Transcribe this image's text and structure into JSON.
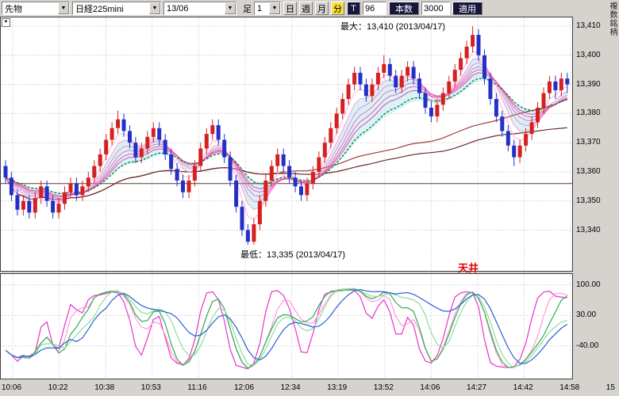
{
  "toolbar": {
    "instrument": "先物",
    "symbol": "日経225mini",
    "contract_month": "13/06",
    "bar_label": "足",
    "interval_value": "1",
    "period_buttons": [
      {
        "label": "日",
        "selected": false
      },
      {
        "label": "週",
        "selected": false
      },
      {
        "label": "月",
        "selected": false
      },
      {
        "label": "分",
        "selected": true
      }
    ],
    "tick_label": "T",
    "bars_count_value": "96",
    "bars_count_label": "本数",
    "range_value": "3000",
    "apply_label": "適用"
  },
  "side": {
    "vertical_tab": "複数銘柄"
  },
  "icons": {
    "dropdown": "▼",
    "corner": "▼"
  },
  "annotations": {
    "max_label": "最大：13,410 (2013/04/17)",
    "min_label": "最低：13,335 (2013/04/17)",
    "ceiling_label": "天井",
    "ceiling_color": "#e80000"
  },
  "price_axis": {
    "labels": [
      "13,410",
      "13,400",
      "13,390",
      "13,380",
      "13,370",
      "13,360",
      "13,350",
      "13,340"
    ],
    "values": [
      13410,
      13400,
      13390,
      13380,
      13370,
      13360,
      13350,
      13340
    ]
  },
  "osc_axis": {
    "labels": [
      "100.00",
      "30.00",
      "-40.00"
    ],
    "values": [
      100,
      30,
      -40
    ]
  },
  "time_axis": {
    "labels": [
      "10:06",
      "10:22",
      "10:38",
      "10:53",
      "11:16",
      "12:06",
      "12:34",
      "13:19",
      "13:52",
      "14:06",
      "14:27",
      "14:42",
      "14:58",
      "15"
    ]
  },
  "colors": {
    "candle_up": "#d42020",
    "candle_down": "#2330c8",
    "band_fill": "#c3edf2",
    "green_ma": "#0a7a2a",
    "flat_line": "#5a3a3a",
    "grid": "#c3c3c3",
    "selected_period_bg": "#f6df3a",
    "dark_button_bg": "#17173d"
  },
  "chart_data": [
    {
      "type": "candlestick",
      "ylim": [
        13326,
        13413
      ],
      "y_gridlines": [
        13340,
        13350,
        13360,
        13370,
        13380,
        13390,
        13400,
        13410
      ],
      "x_ticks": [
        "10:06",
        "10:22",
        "10:38",
        "10:53",
        "11:16",
        "12:06",
        "12:34",
        "13:19",
        "13:52",
        "14:06",
        "14:27",
        "14:42",
        "14:58",
        "15"
      ],
      "max_point": {
        "value": 13410,
        "date": "2013/04/17"
      },
      "min_point": {
        "value": 13335,
        "date": "2013/04/17"
      },
      "ohlc": [
        [
          13362,
          13364,
          13356,
          13358
        ],
        [
          13358,
          13360,
          13350,
          13352
        ],
        [
          13352,
          13354,
          13345,
          13347
        ],
        [
          13347,
          13352,
          13345,
          13350
        ],
        [
          13350,
          13352,
          13344,
          13346
        ],
        [
          13346,
          13353,
          13344,
          13351
        ],
        [
          13351,
          13357,
          13349,
          13355
        ],
        [
          13355,
          13357,
          13348,
          13350
        ],
        [
          13350,
          13352,
          13344,
          13346
        ],
        [
          13346,
          13351,
          13344,
          13349
        ],
        [
          13349,
          13355,
          13347,
          13353
        ],
        [
          13353,
          13358,
          13351,
          13356
        ],
        [
          13356,
          13358,
          13350,
          13352
        ],
        [
          13352,
          13357,
          13350,
          13355
        ],
        [
          13355,
          13360,
          13353,
          13358
        ],
        [
          13358,
          13364,
          13356,
          13362
        ],
        [
          13362,
          13368,
          13360,
          13366
        ],
        [
          13366,
          13373,
          13364,
          13371
        ],
        [
          13371,
          13377,
          13369,
          13375
        ],
        [
          13375,
          13381,
          13373,
          13378
        ],
        [
          13378,
          13380,
          13372,
          13374
        ],
        [
          13374,
          13376,
          13368,
          13370
        ],
        [
          13370,
          13372,
          13363,
          13365
        ],
        [
          13365,
          13370,
          13363,
          13368
        ],
        [
          13368,
          13374,
          13366,
          13372
        ],
        [
          13372,
          13377,
          13370,
          13375
        ],
        [
          13375,
          13377,
          13369,
          13371
        ],
        [
          13371,
          13373,
          13364,
          13366
        ],
        [
          13366,
          13368,
          13359,
          13361
        ],
        [
          13361,
          13363,
          13355,
          13357
        ],
        [
          13357,
          13359,
          13351,
          13353
        ],
        [
          13353,
          13359,
          13351,
          13357
        ],
        [
          13357,
          13364,
          13355,
          13362
        ],
        [
          13362,
          13370,
          13360,
          13368
        ],
        [
          13368,
          13375,
          13366,
          13373
        ],
        [
          13373,
          13378,
          13371,
          13376
        ],
        [
          13376,
          13378,
          13369,
          13371
        ],
        [
          13371,
          13373,
          13363,
          13365
        ],
        [
          13365,
          13367,
          13355,
          13357
        ],
        [
          13357,
          13359,
          13346,
          13348
        ],
        [
          13348,
          13350,
          13338,
          13340
        ],
        [
          13340,
          13342,
          13335,
          13336
        ],
        [
          13336,
          13344,
          13335,
          13342
        ],
        [
          13342,
          13352,
          13340,
          13350
        ],
        [
          13350,
          13359,
          13348,
          13357
        ],
        [
          13357,
          13364,
          13355,
          13362
        ],
        [
          13362,
          13368,
          13360,
          13366
        ],
        [
          13366,
          13368,
          13360,
          13362
        ],
        [
          13362,
          13364,
          13356,
          13358
        ],
        [
          13358,
          13360,
          13353,
          13355
        ],
        [
          13355,
          13357,
          13350,
          13352
        ],
        [
          13352,
          13358,
          13350,
          13356
        ],
        [
          13356,
          13362,
          13354,
          13360
        ],
        [
          13360,
          13367,
          13358,
          13365
        ],
        [
          13365,
          13372,
          13363,
          13370
        ],
        [
          13370,
          13377,
          13368,
          13375
        ],
        [
          13375,
          13382,
          13373,
          13380
        ],
        [
          13380,
          13387,
          13378,
          13385
        ],
        [
          13385,
          13392,
          13383,
          13390
        ],
        [
          13390,
          13396,
          13388,
          13394
        ],
        [
          13394,
          13396,
          13388,
          13390
        ],
        [
          13390,
          13392,
          13384,
          13386
        ],
        [
          13386,
          13392,
          13384,
          13390
        ],
        [
          13390,
          13396,
          13388,
          13394
        ],
        [
          13394,
          13400,
          13392,
          13397
        ],
        [
          13397,
          13399,
          13391,
          13393
        ],
        [
          13393,
          13395,
          13387,
          13389
        ],
        [
          13389,
          13395,
          13387,
          13393
        ],
        [
          13393,
          13398,
          13391,
          13396
        ],
        [
          13396,
          13398,
          13390,
          13392
        ],
        [
          13392,
          13394,
          13385,
          13387
        ],
        [
          13387,
          13389,
          13380,
          13382
        ],
        [
          13382,
          13384,
          13377,
          13379
        ],
        [
          13379,
          13385,
          13377,
          13383
        ],
        [
          13383,
          13389,
          13381,
          13387
        ],
        [
          13387,
          13393,
          13385,
          13391
        ],
        [
          13391,
          13397,
          13389,
          13395
        ],
        [
          13395,
          13401,
          13393,
          13399
        ],
        [
          13399,
          13405,
          13397,
          13403
        ],
        [
          13403,
          13410,
          13401,
          13407
        ],
        [
          13407,
          13409,
          13398,
          13400
        ],
        [
          13400,
          13402,
          13390,
          13392
        ],
        [
          13392,
          13394,
          13383,
          13385
        ],
        [
          13385,
          13387,
          13377,
          13379
        ],
        [
          13379,
          13381,
          13372,
          13374
        ],
        [
          13374,
          13376,
          13367,
          13369
        ],
        [
          13369,
          13371,
          13362,
          13365
        ],
        [
          13365,
          13371,
          13363,
          13369
        ],
        [
          13369,
          13375,
          13367,
          13373
        ],
        [
          13373,
          13379,
          13371,
          13377
        ],
        [
          13377,
          13384,
          13375,
          13382
        ],
        [
          13382,
          13389,
          13380,
          13387
        ],
        [
          13387,
          13393,
          13385,
          13391
        ],
        [
          13391,
          13393,
          13385,
          13388
        ],
        [
          13388,
          13394,
          13386,
          13392
        ],
        [
          13392,
          13394,
          13387,
          13390
        ]
      ],
      "overlays": {
        "ribbon": [
          {
            "period": 4,
            "color": "#ffb0dc"
          },
          {
            "period": 6,
            "color": "#fb9bd2"
          },
          {
            "period": 8,
            "color": "#f686c8"
          },
          {
            "period": 10,
            "color": "#f071be"
          },
          {
            "period": 12,
            "color": "#ea5cb4"
          },
          {
            "period": 14,
            "color": "#e447aa"
          }
        ],
        "green_dotted_period": 18,
        "slow_ma": [
          {
            "period": 45,
            "color": "#a03a3a"
          },
          {
            "period": 75,
            "color": "#6e2a2a"
          }
        ],
        "band_periods": [
          6,
          20
        ],
        "flat_line_value": 13356
      }
    },
    {
      "type": "line",
      "name": "oscillator",
      "ylim": [
        -115,
        125
      ],
      "y_gridlines": [
        100,
        30,
        -40
      ],
      "series": [
        {
          "period": 6,
          "smooth": 2,
          "color": "#e832cc"
        },
        {
          "period": 9,
          "smooth": 3,
          "color": "#ff9ad9"
        },
        {
          "period": 12,
          "smooth": 3,
          "color": "#2fae4f"
        },
        {
          "period": 16,
          "smooth": 4,
          "color": "#90dc9a"
        },
        {
          "period": 26,
          "smooth": 6,
          "color": "#2b5fd9"
        }
      ]
    }
  ]
}
